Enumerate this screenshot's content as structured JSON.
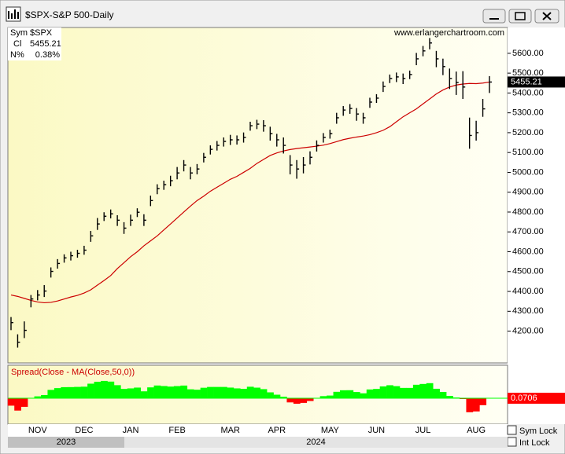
{
  "window": {
    "title": "$SPX-S&P 500-Daily",
    "sym_lock": "Sym Lock",
    "int_lock": "Int Lock"
  },
  "chart_data": [
    {
      "type": "ohlc",
      "watermark": "www.erlangerchartroom.com",
      "info": {
        "sym_label": "Sym",
        "sym": "$SPX",
        "close_label": "Cl",
        "change_label": "N%",
        "change": "0.38%"
      },
      "categories": [
        null,
        null,
        null,
        null,
        "NOV",
        null,
        null,
        null,
        null,
        null,
        null,
        "DEC",
        null,
        null,
        null,
        null,
        null,
        null,
        "JAN",
        null,
        null,
        null,
        null,
        null,
        null,
        "FEB",
        null,
        null,
        null,
        null,
        null,
        null,
        null,
        "MAR",
        null,
        null,
        null,
        null,
        null,
        null,
        "APR",
        null,
        null,
        null,
        null,
        null,
        null,
        null,
        "MAY",
        null,
        null,
        null,
        null,
        null,
        null,
        "JUN",
        null,
        null,
        null,
        null,
        null,
        null,
        "JUL",
        null,
        null,
        null,
        null,
        null,
        null,
        null,
        "AUG",
        null,
        null
      ],
      "years": [
        "2023",
        "2024"
      ],
      "high": [
        4271,
        4184,
        4249,
        4382,
        4407,
        4432,
        4521,
        4563,
        4587,
        4600,
        4610,
        4630,
        4705,
        4770,
        4799,
        4813,
        4784,
        4749,
        4787,
        4819,
        4789,
        4883,
        4940,
        4958,
        4983,
        5027,
        5062,
        5027,
        5042,
        5098,
        5136,
        5158,
        5176,
        5189,
        5186,
        5201,
        5255,
        5265,
        5263,
        5230,
        5194,
        5176,
        5087,
        5062,
        5077,
        5106,
        5161,
        5198,
        5215,
        5300,
        5334,
        5344,
        5324,
        5300,
        5376,
        5394,
        5458,
        5493,
        5503,
        5498,
        5513,
        5602,
        5637,
        5677,
        5612,
        5573,
        5523,
        5508,
        5510,
        5276,
        5260,
        5370,
        5485
      ],
      "low": [
        4205,
        4117,
        4165,
        4320,
        4355,
        4372,
        4470,
        4515,
        4545,
        4556,
        4570,
        4585,
        4650,
        4710,
        4755,
        4768,
        4730,
        4690,
        4730,
        4775,
        4730,
        4830,
        4890,
        4912,
        4930,
        4965,
        5005,
        4965,
        4990,
        5050,
        5090,
        5110,
        5130,
        5138,
        5140,
        5150,
        5210,
        5218,
        5205,
        5160,
        5130,
        5095,
        4990,
        4968,
        4995,
        5040,
        5105,
        5150,
        5170,
        5245,
        5285,
        5295,
        5260,
        5245,
        5325,
        5350,
        5405,
        5450,
        5455,
        5445,
        5470,
        5540,
        5585,
        5620,
        5530,
        5490,
        5420,
        5390,
        5370,
        5119,
        5160,
        5280,
        5400
      ],
      "close": [
        4243,
        4144,
        4204,
        4362,
        4382,
        4402,
        4501,
        4541,
        4569,
        4580,
        4592,
        4608,
        4680,
        4740,
        4779,
        4791,
        4759,
        4719,
        4759,
        4799,
        4759,
        4858,
        4918,
        4938,
        4958,
        4997,
        5037,
        4997,
        5017,
        5076,
        5116,
        5136,
        5156,
        5164,
        5164,
        5176,
        5235,
        5243,
        5235,
        5195,
        5164,
        5136,
        5037,
        5017,
        5037,
        5076,
        5136,
        5176,
        5195,
        5275,
        5314,
        5322,
        5294,
        5275,
        5354,
        5374,
        5433,
        5473,
        5481,
        5473,
        5493,
        5572,
        5612,
        5652,
        5572,
        5533,
        5473,
        5453,
        5430,
        5186,
        5200,
        5320,
        5455.21
      ],
      "color": "#000000",
      "overlay": {
        "color": "#cc0000",
        "values": [
          4382,
          4375,
          4365,
          4355,
          4347,
          4343,
          4345,
          4352,
          4362,
          4372,
          4380,
          4392,
          4408,
          4432,
          4455,
          4480,
          4515,
          4545,
          4575,
          4600,
          4630,
          4655,
          4680,
          4710,
          4740,
          4770,
          4800,
          4830,
          4858,
          4880,
          4905,
          4925,
          4945,
          4965,
          4980,
          5000,
          5020,
          5045,
          5065,
          5085,
          5098,
          5108,
          5115,
          5120,
          5124,
          5128,
          5132,
          5137,
          5145,
          5155,
          5165,
          5172,
          5178,
          5183,
          5190,
          5200,
          5212,
          5230,
          5255,
          5280,
          5300,
          5320,
          5345,
          5370,
          5395,
          5415,
          5430,
          5440,
          5445,
          5448,
          5447,
          5450,
          5455.1394
        ]
      },
      "ylim": [
        4040,
        5730
      ],
      "yticks": [
        {
          "value": 4200,
          "label": "4200.00"
        },
        {
          "value": 4300,
          "label": "4300.00"
        },
        {
          "value": 4400,
          "label": "4400.00"
        },
        {
          "value": 4500,
          "label": "4500.00"
        },
        {
          "value": 4600,
          "label": "4600.00"
        },
        {
          "value": 4700,
          "label": "4700.00"
        },
        {
          "value": 4800,
          "label": "4800.00"
        },
        {
          "value": 4900,
          "label": "4900.00"
        },
        {
          "value": 5000,
          "label": "5000.00"
        },
        {
          "value": 5100,
          "label": "5100.00"
        },
        {
          "value": 5200,
          "label": "5200.00"
        },
        {
          "value": 5300,
          "label": "5300.00"
        },
        {
          "value": 5400,
          "label": "5400.00"
        },
        {
          "value": 5500,
          "label": "5500.00"
        },
        {
          "value": 5600,
          "label": "5600.00"
        }
      ]
    },
    {
      "type": "bar",
      "title": "Spread(Close - MA(Close,50,0))",
      "values": [
        -139,
        -231,
        -161,
        7,
        35,
        59,
        156,
        189,
        207,
        208,
        212,
        216,
        272,
        308,
        324,
        311,
        244,
        174,
        184,
        199,
        129,
        203,
        238,
        228,
        218,
        227,
        237,
        167,
        159,
        196,
        211,
        211,
        211,
        199,
        184,
        176,
        215,
        198,
        170,
        110,
        66,
        28,
        -78,
        -103,
        -87,
        -52,
        4,
        39,
        50,
        120,
        149,
        150,
        116,
        92,
        164,
        174,
        221,
        243,
        226,
        193,
        193,
        252,
        267,
        282,
        177,
        118,
        43,
        13,
        -15,
        -262,
        -247,
        -130,
        0.0706
      ],
      "colors": {
        "positive": "#00ff00",
        "negative": "#ff0000"
      },
      "ylim": [
        -485,
        617
      ]
    }
  ]
}
